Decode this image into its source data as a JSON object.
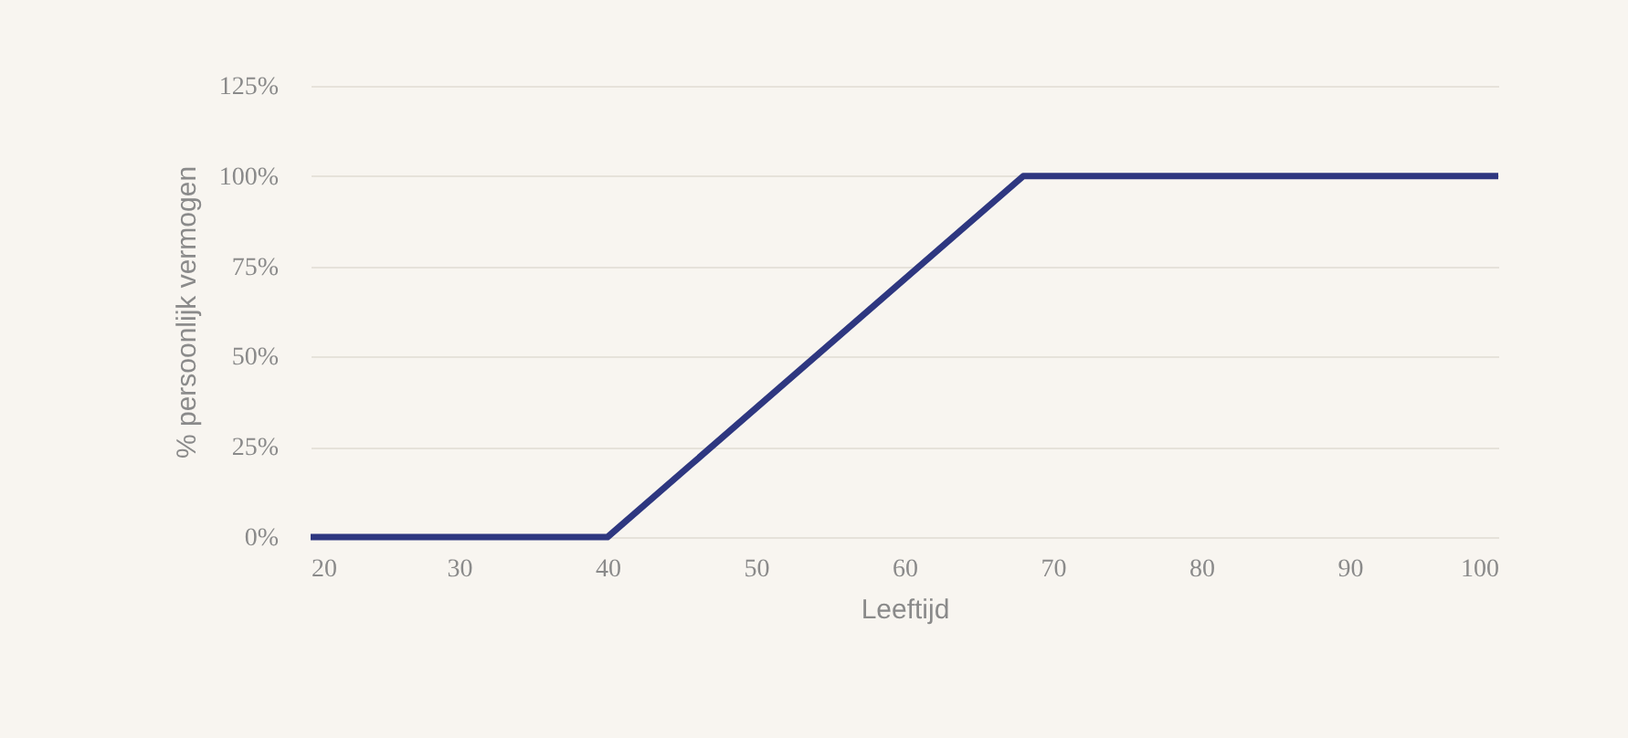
{
  "chart_data": {
    "type": "line",
    "xlabel": "Leeftijd",
    "ylabel": "% persoonlijk vermogen",
    "series": [
      {
        "color": "#2e3780",
        "x": [
          20,
          40,
          68,
          100
        ],
        "values": [
          0,
          0,
          100,
          100
        ]
      }
    ],
    "xlim": [
      20,
      100
    ],
    "xticks": [
      20,
      30,
      40,
      50,
      60,
      70,
      80,
      90,
      100
    ],
    "ylim": [
      0,
      125
    ],
    "yticks": [
      {
        "value": 0,
        "label": "0%"
      },
      {
        "value": 25,
        "label": "25%"
      },
      {
        "value": 50,
        "label": "50%"
      },
      {
        "value": 75,
        "label": "75%"
      },
      {
        "value": 100,
        "label": "100%"
      },
      {
        "value": 125,
        "label": "125%"
      }
    ],
    "grid": "y",
    "marker": "none",
    "line_style": "solid"
  }
}
